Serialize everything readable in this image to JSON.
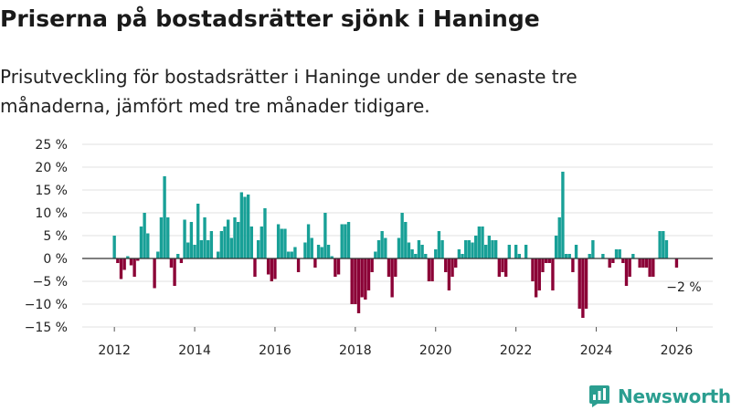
{
  "title": "Priserna på bostadsrätter sjönk i Haninge",
  "subtitle": "Prisutveckling för bostadsrätter i Haninge under de senaste tre månaderna, jämfört med tre månader tidigare.",
  "brand": "Newsworthy",
  "colors": {
    "positive": "#18a097",
    "negative": "#8b0036",
    "zero_line": "#333333",
    "grid": "#e2e2e2",
    "brand": "#2b9e90"
  },
  "chart_data": {
    "type": "bar",
    "title": "Priserna på bostadsrätter sjönk i Haninge",
    "xlabel": "",
    "ylabel": "",
    "ylim": [
      -15,
      25
    ],
    "xlim": [
      2011.2,
      2026.9
    ],
    "y_ticks": [
      25,
      20,
      15,
      10,
      5,
      0,
      -5,
      -10,
      -15
    ],
    "y_tick_labels": [
      "25 %",
      "20 %",
      "15 %",
      "10 %",
      "5 %",
      "0 %",
      "−5 %",
      "−10 %",
      "−15 %"
    ],
    "x_ticks": [
      2012,
      2014,
      2016,
      2018,
      2020,
      2022,
      2024,
      2026
    ],
    "x_tick_labels": [
      "2012",
      "2014",
      "2016",
      "2018",
      "2020",
      "2022",
      "2024",
      "2026"
    ],
    "start_year": 2012,
    "months_per_bar": 1,
    "annotation": {
      "text": "−2 %",
      "value": -2
    },
    "values": [
      5,
      -1,
      -4.5,
      -2.5,
      0.5,
      -1.5,
      -4,
      -0.5,
      7,
      10,
      5.5,
      0,
      -6.5,
      1.5,
      9,
      18,
      9,
      -2,
      -6,
      1,
      -1,
      8.5,
      3.5,
      8,
      3,
      12,
      4,
      9,
      4,
      6,
      0,
      1.5,
      6,
      7,
      8.5,
      4.5,
      9,
      8,
      14.5,
      13.5,
      14,
      7,
      -4,
      4,
      7,
      11,
      -3.5,
      -5,
      -4.5,
      7.5,
      6.5,
      6.5,
      1.5,
      1.5,
      2.5,
      -3,
      0,
      3.5,
      7.5,
      4.5,
      -2,
      3,
      2.5,
      10,
      3,
      0.5,
      -4,
      -3.5,
      7.5,
      7.5,
      8,
      -10,
      -10,
      -12,
      -8.5,
      -9,
      -7,
      -3,
      1.5,
      4,
      6,
      4.5,
      -4,
      -8.5,
      -4,
      4.5,
      10,
      8,
      3.5,
      2,
      1,
      4,
      3,
      1,
      -5,
      -5,
      2,
      6,
      4,
      -3,
      -7,
      -4,
      -2,
      2,
      1,
      4,
      4,
      3.5,
      5,
      7,
      7,
      3,
      5,
      4,
      4,
      -4,
      -3,
      -4,
      3,
      0,
      3,
      1,
      0,
      3,
      0,
      -5,
      -8.5,
      -7,
      -3,
      -1,
      -1,
      -7,
      5,
      9,
      19,
      1,
      1,
      -3,
      3,
      -11,
      -13,
      -11,
      1,
      4,
      0,
      0,
      1,
      0,
      -2,
      -1,
      2,
      2,
      -1,
      -6,
      -4,
      1,
      0,
      -2,
      -2,
      -2,
      -4,
      -4,
      0,
      6,
      6,
      4,
      0,
      0,
      -2
    ]
  }
}
